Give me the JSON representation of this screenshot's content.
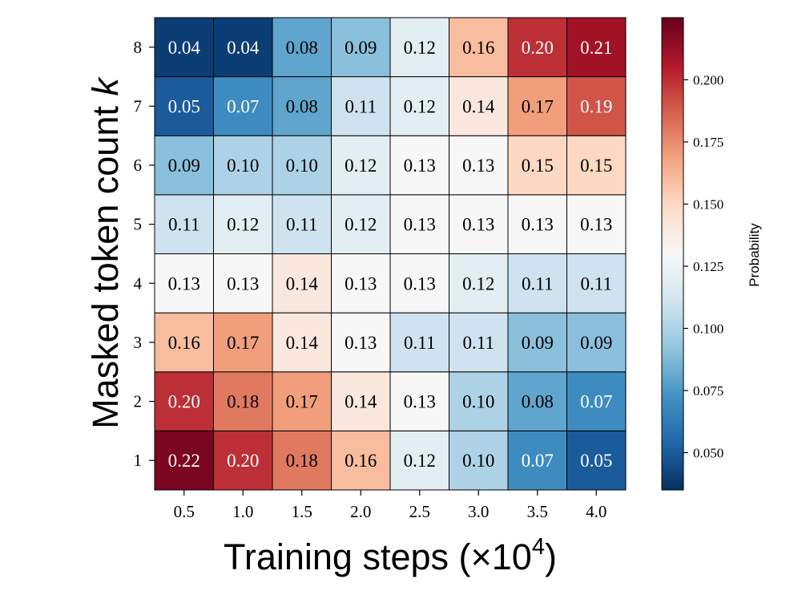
{
  "chart_data": {
    "type": "heatmap",
    "xlabel_main": "Training steps (×10",
    "xlabel_exp": "4",
    "xlabel_close": ")",
    "ylabel_main": "Masked token count ",
    "ylabel_var": "k",
    "x_ticks": [
      "0.5",
      "1.0",
      "1.5",
      "2.0",
      "2.5",
      "3.0",
      "3.5",
      "4.0"
    ],
    "y_ticks": [
      "1",
      "2",
      "3",
      "4",
      "5",
      "6",
      "7",
      "8"
    ],
    "values": [
      [
        0.22,
        0.2,
        0.18,
        0.16,
        0.12,
        0.1,
        0.07,
        0.05
      ],
      [
        0.2,
        0.18,
        0.17,
        0.14,
        0.13,
        0.1,
        0.08,
        0.07
      ],
      [
        0.16,
        0.17,
        0.14,
        0.13,
        0.11,
        0.11,
        0.09,
        0.09
      ],
      [
        0.13,
        0.13,
        0.14,
        0.13,
        0.13,
        0.12,
        0.11,
        0.11
      ],
      [
        0.11,
        0.12,
        0.11,
        0.12,
        0.13,
        0.13,
        0.13,
        0.13
      ],
      [
        0.09,
        0.1,
        0.1,
        0.12,
        0.13,
        0.13,
        0.15,
        0.15
      ],
      [
        0.05,
        0.07,
        0.08,
        0.11,
        0.12,
        0.14,
        0.17,
        0.19
      ],
      [
        0.04,
        0.04,
        0.08,
        0.09,
        0.12,
        0.16,
        0.2,
        0.21
      ]
    ],
    "colormap": "RdBu_r",
    "colorbar": {
      "label": "Probability",
      "range": [
        0.035,
        0.225
      ],
      "ticks": [
        "0.050",
        "0.075",
        "0.100",
        "0.125",
        "0.150",
        "0.175",
        "0.200"
      ]
    }
  }
}
